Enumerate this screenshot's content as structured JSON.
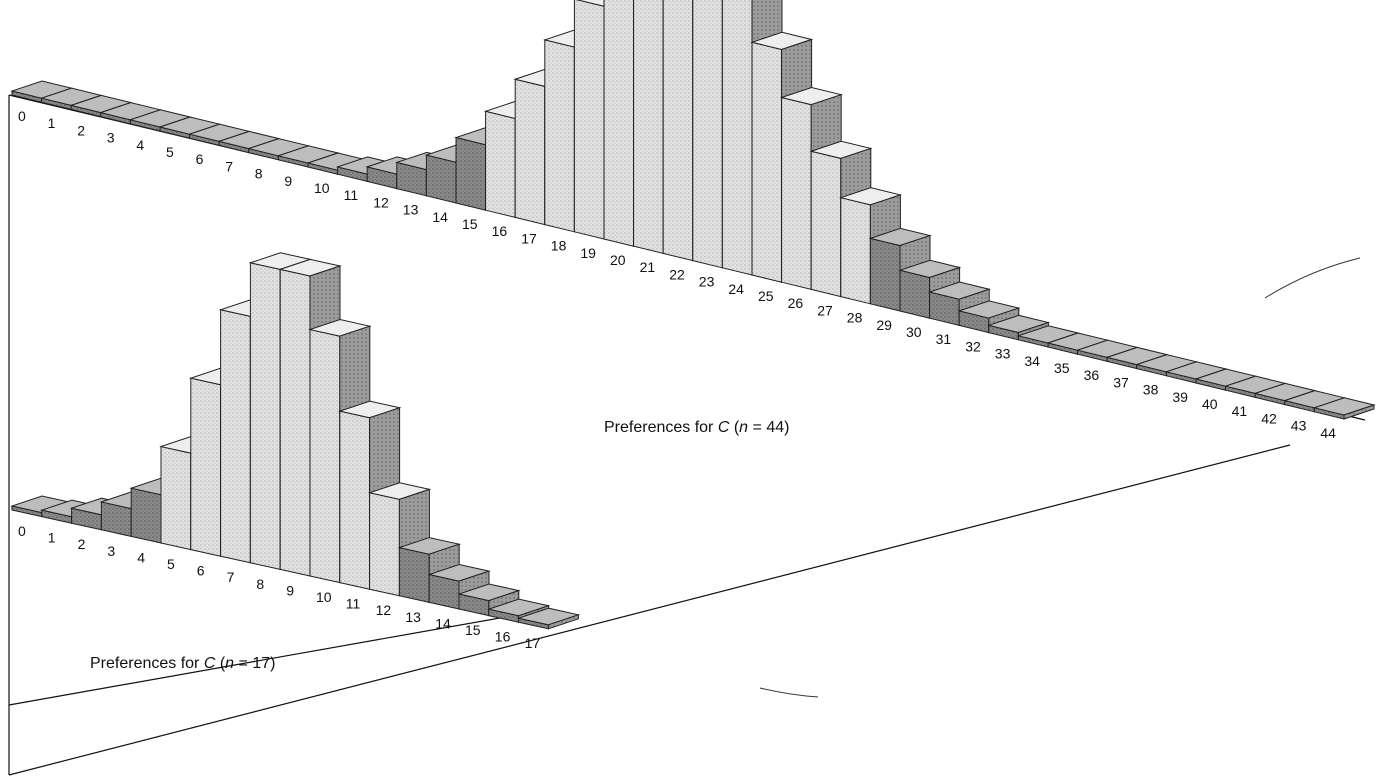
{
  "chart_data": [
    {
      "type": "bar",
      "caption": {
        "prefix": "Preferences for ",
        "var": "C",
        "open": " (",
        "n_label": "n",
        "n_rest": " = 44)"
      },
      "categories": [
        "0",
        "1",
        "2",
        "3",
        "4",
        "5",
        "6",
        "7",
        "8",
        "9",
        "10",
        "11",
        "12",
        "13",
        "14",
        "15",
        "16",
        "17",
        "18",
        "19",
        "20",
        "21",
        "22",
        "23",
        "24",
        "25",
        "26",
        "27",
        "28",
        "29",
        "30",
        "31",
        "32",
        "33",
        "34",
        "35",
        "36",
        "37",
        "38",
        "39",
        "40",
        "41",
        "42",
        "43",
        "44"
      ],
      "values": [
        0,
        0,
        0,
        0,
        0,
        0,
        0,
        0,
        0,
        0,
        0.002,
        0.005,
        0.01,
        0.018,
        0.028,
        0.045,
        0.068,
        0.095,
        0.127,
        0.16,
        0.19,
        0.212,
        0.22,
        0.212,
        0.19,
        0.16,
        0.127,
        0.095,
        0.068,
        0.045,
        0.028,
        0.018,
        0.01,
        0.005,
        0.002,
        0,
        0,
        0,
        0,
        0,
        0,
        0,
        0,
        0,
        0
      ],
      "highlight_range": [
        16,
        28
      ]
    },
    {
      "type": "bar",
      "caption": {
        "prefix": "Preferences for ",
        "var": "C",
        "open": " (",
        "n_label": "n",
        "n_rest": " = 17)"
      },
      "categories": [
        "0",
        "1",
        "2",
        "3",
        "4",
        "5",
        "6",
        "7",
        "8",
        "9",
        "10",
        "11",
        "12",
        "13",
        "14",
        "15",
        "16",
        "17"
      ],
      "values": [
        0.002,
        0.006,
        0.014,
        0.026,
        0.045,
        0.09,
        0.16,
        0.23,
        0.28,
        0.28,
        0.23,
        0.16,
        0.09,
        0.045,
        0.026,
        0.014,
        0.006,
        0.002
      ],
      "highlight_range": [
        5,
        12
      ]
    }
  ],
  "colors": {
    "light_face": "#dcdcdc",
    "dark_face": "#8c8c8c",
    "top_face": "#efefef",
    "side_face": "#9a9a9a",
    "stroke": "#222222"
  }
}
